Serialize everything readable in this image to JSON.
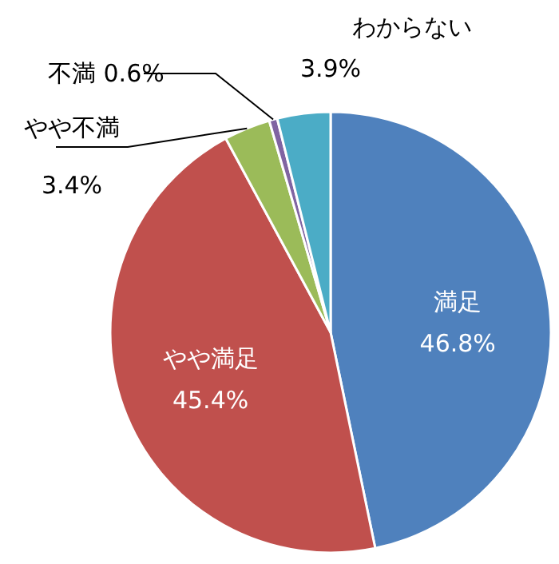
{
  "chart_data": {
    "type": "pie",
    "categories": [
      "満足",
      "やや満足",
      "やや不満",
      "不満",
      "わからない"
    ],
    "values": [
      46.8,
      45.4,
      3.4,
      0.6,
      3.9
    ],
    "value_labels": [
      "46.8%",
      "45.4%",
      "3.4%",
      "0.6%",
      "3.9%"
    ],
    "colors": [
      "#4f81bd",
      "#c0504d",
      "#9bbb59",
      "#8064a2",
      "#4bacc6"
    ]
  }
}
